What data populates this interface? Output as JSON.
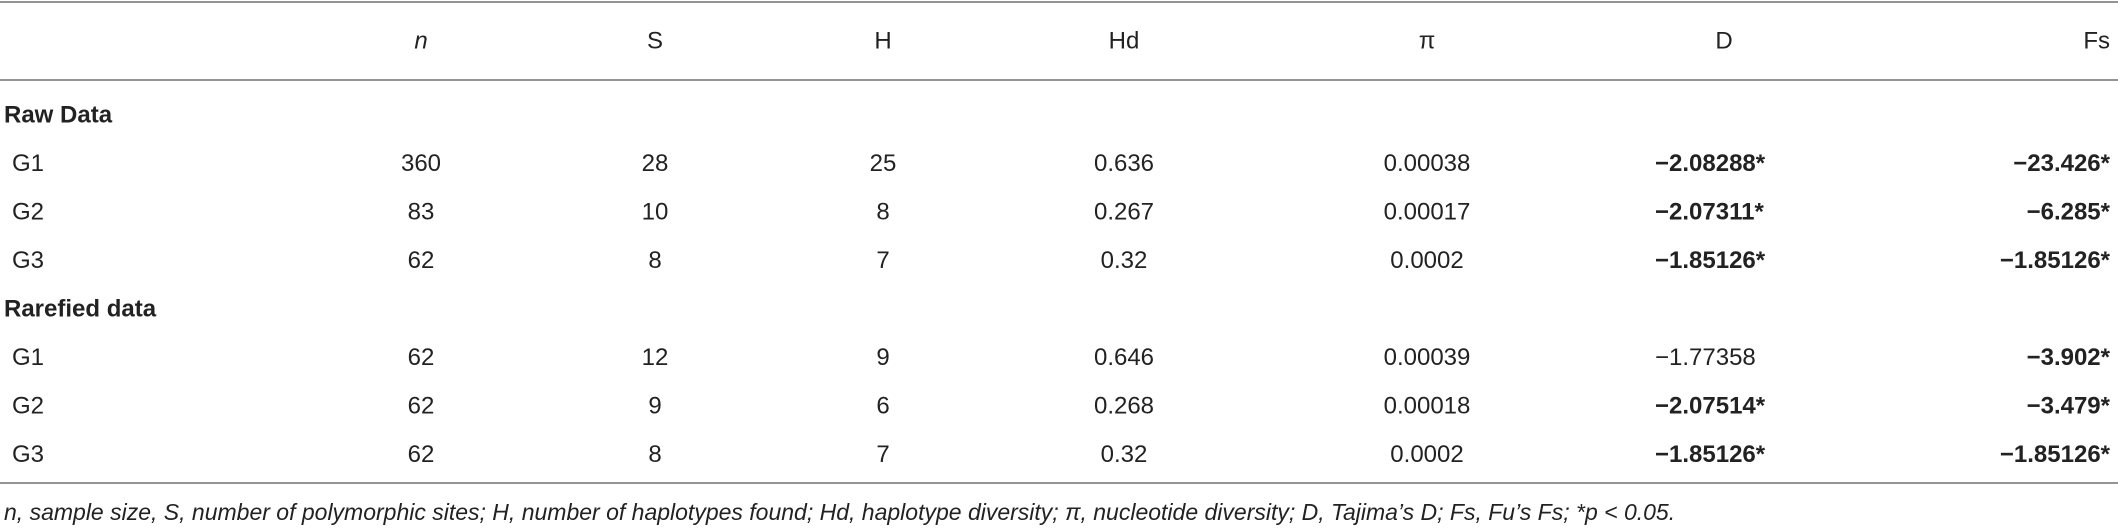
{
  "table": {
    "columns": [
      "n",
      "S",
      "H",
      "Hd",
      "π",
      "D",
      "Fs"
    ],
    "sections": [
      {
        "title": "Raw Data",
        "rows": [
          {
            "cells": [
              "G1",
              "360",
              "28",
              "25",
              "0.636",
              "0.00038",
              "−2.08288*",
              "−23.426*"
            ],
            "bold": [
              6,
              7
            ]
          },
          {
            "cells": [
              "G2",
              "83",
              "10",
              "8",
              "0.267",
              "0.00017",
              "−2.07311*",
              "−6.285*"
            ],
            "bold": [
              6,
              7
            ]
          },
          {
            "cells": [
              "G3",
              "62",
              "8",
              "7",
              "0.32",
              "0.0002",
              "−1.85126*",
              "−1.85126*"
            ],
            "bold": [
              6,
              7
            ]
          }
        ]
      },
      {
        "title": "Rarefied data",
        "rows": [
          {
            "cells": [
              "G1",
              "62",
              "12",
              "9",
              "0.646",
              "0.00039",
              "−1.77358",
              "−3.902*"
            ],
            "bold": [
              7
            ]
          },
          {
            "cells": [
              "G2",
              "62",
              "9",
              "6",
              "0.268",
              "0.00018",
              "−2.07514*",
              "−3.479*"
            ],
            "bold": [
              6,
              7
            ]
          },
          {
            "cells": [
              "G3",
              "62",
              "8",
              "7",
              "0.32",
              "0.0002",
              "−1.85126*",
              "−1.85126*"
            ],
            "bold": [
              6,
              7
            ]
          }
        ]
      }
    ],
    "footnote": "n, sample size, S, number of polymorphic sites; H, number of haplotypes found; Hd, haplotype diversity; π, nucleotide diversity; D, Tajima’s D; Fs, Fu’s Fs; *p < 0.05."
  }
}
